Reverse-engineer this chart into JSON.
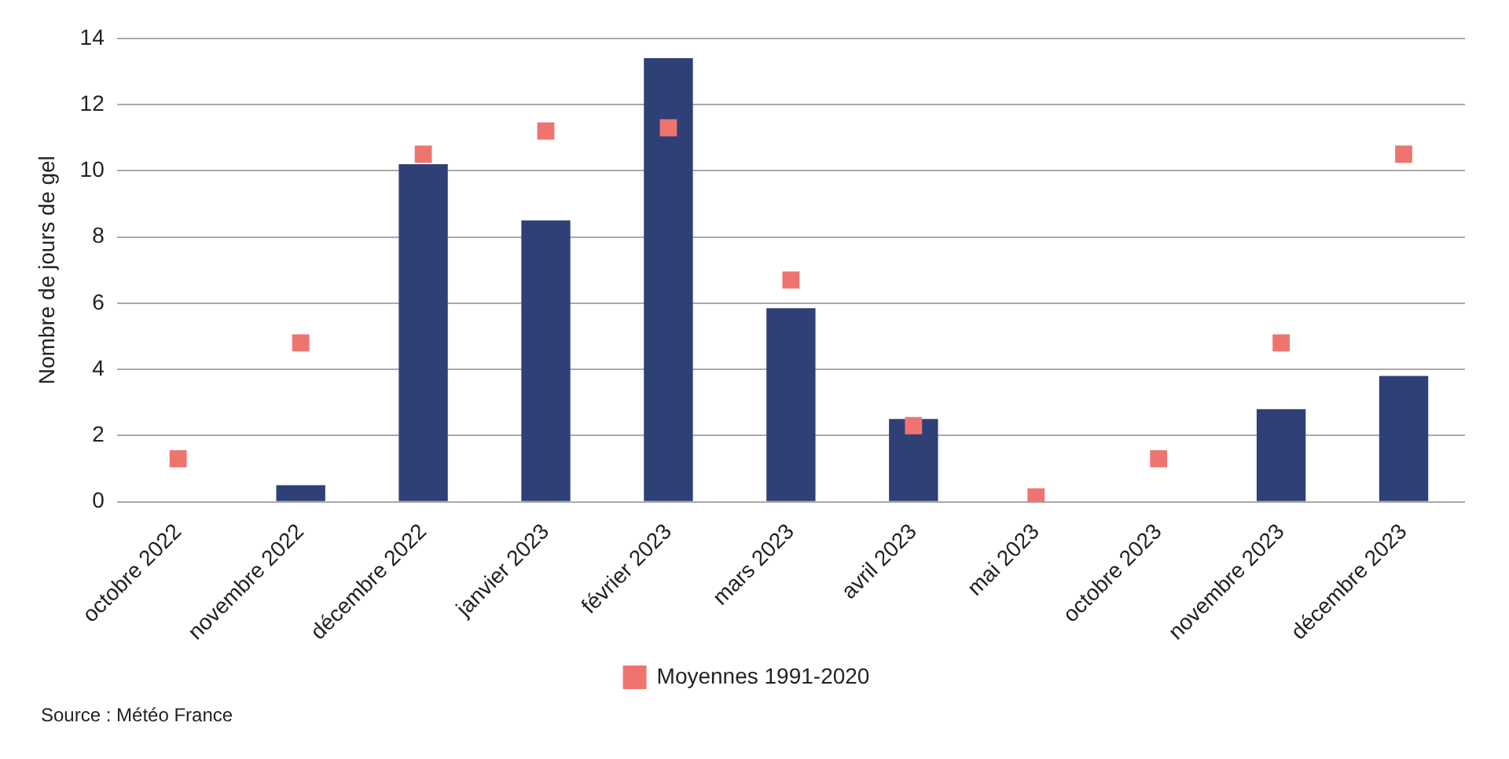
{
  "chart_data": {
    "type": "bar",
    "ylabel": "Nombre de jours de gel",
    "categories": [
      "octobre 2022",
      "novembre 2022",
      "décembre 2022",
      "janvier 2023",
      "février 2023",
      "mars 2023",
      "avril 2023",
      "mai 2023",
      "octobre 2023",
      "novembre 2023",
      "décembre 2023"
    ],
    "series": [
      {
        "color": "#2f4077",
        "values": [
          0,
          0.5,
          10.2,
          8.5,
          13.4,
          5.85,
          2.5,
          0,
          0,
          2.8,
          3.8
        ]
      },
      {
        "type": "scatter",
        "name": "Moyennes 1991-2020",
        "color": "#ee756f",
        "marker": "square",
        "values": [
          1.3,
          4.8,
          10.5,
          11.2,
          11.3,
          6.7,
          2.3,
          0.15,
          1.3,
          4.8,
          10.5
        ]
      }
    ],
    "ylim": [
      0,
      14
    ],
    "yticks": [
      0,
      2,
      4,
      6,
      8,
      10,
      12,
      14
    ],
    "grid": "y",
    "legend": "bottom",
    "annotations": [
      "Source : Météo France"
    ]
  }
}
